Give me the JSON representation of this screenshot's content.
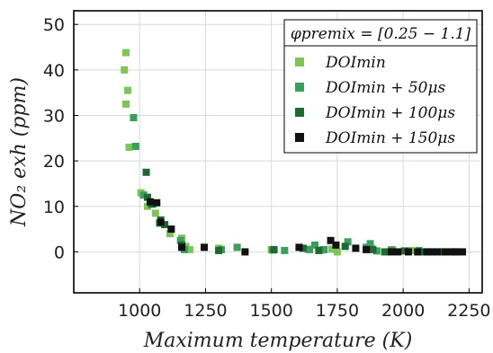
{
  "chart_data": {
    "type": "scatter",
    "title": "",
    "xlabel": "Maximum temperature (K)",
    "ylabel": "NO₂ exh (ppm)",
    "xlim": [
      750,
      2300
    ],
    "ylim": [
      -9,
      53
    ],
    "xticks": [
      1000,
      1250,
      1500,
      1750,
      2000,
      2250
    ],
    "yticks": [
      0,
      10,
      20,
      30,
      40,
      50
    ],
    "grid": true,
    "legend": {
      "title": "φpremix = [0.25 − 1.1]",
      "placement": "top-right"
    },
    "series": [
      {
        "name": "DOImin",
        "color": "#7cc657",
        "points": [
          [
            948,
            43.8
          ],
          [
            942,
            40
          ],
          [
            955,
            35.5
          ],
          [
            948,
            32.5
          ],
          [
            960,
            23
          ],
          [
            1005,
            13
          ],
          [
            1030,
            10
          ],
          [
            1060,
            8.5
          ],
          [
            1115,
            4
          ],
          [
            1160,
            3
          ],
          [
            1175,
            1.2
          ],
          [
            1190,
            0.5
          ],
          [
            1300,
            0.8
          ],
          [
            1500,
            0.5
          ],
          [
            1640,
            0.6
          ],
          [
            1690,
            0.4
          ],
          [
            1730,
            0.6
          ],
          [
            1750,
            0
          ],
          [
            1880,
            0.7
          ],
          [
            1960,
            0.5
          ],
          [
            2030,
            0.3
          ]
        ]
      },
      {
        "name": "DOImin + 50μs",
        "color": "#3a9f5c",
        "points": [
          [
            977,
            29.5
          ],
          [
            985,
            23.2
          ],
          [
            1015,
            12.5
          ],
          [
            1050,
            10.5
          ],
          [
            1075,
            6.3
          ],
          [
            1155,
            2.5
          ],
          [
            1170,
            0.5
          ],
          [
            1310,
            0.5
          ],
          [
            1370,
            1
          ],
          [
            1505,
            0.4
          ],
          [
            1550,
            0.3
          ],
          [
            1645,
            0.5
          ],
          [
            1665,
            1.5
          ],
          [
            1700,
            0.5
          ],
          [
            1790,
            2.2
          ],
          [
            1860,
            1
          ],
          [
            1875,
            1.8
          ],
          [
            1900,
            0.2
          ],
          [
            1955,
            0.4
          ],
          [
            2060,
            0.3
          ],
          [
            2095,
            0
          ]
        ]
      },
      {
        "name": "DOImin + 100μs",
        "color": "#1d6a30",
        "points": [
          [
            1025,
            17.5
          ],
          [
            1030,
            12
          ],
          [
            1045,
            10.5
          ],
          [
            1080,
            7
          ],
          [
            1095,
            6
          ],
          [
            1160,
            1.5
          ],
          [
            1300,
            0.3
          ],
          [
            1510,
            0.5
          ],
          [
            1620,
            0.8
          ],
          [
            1680,
            0.3
          ],
          [
            1780,
            1.2
          ],
          [
            1885,
            0.5
          ],
          [
            1930,
            0
          ],
          [
            2005,
            0.2
          ],
          [
            2070,
            0
          ],
          [
            2150,
            0
          ],
          [
            2195,
            0
          ]
        ]
      },
      {
        "name": "DOImin + 150μs",
        "color": "#111111",
        "points": [
          [
            1040,
            11
          ],
          [
            1065,
            10.8
          ],
          [
            1080,
            6.5
          ],
          [
            1120,
            5
          ],
          [
            1160,
            1
          ],
          [
            1245,
            1
          ],
          [
            1400,
            0
          ],
          [
            1605,
            1
          ],
          [
            1725,
            2.5
          ],
          [
            1745,
            1.5
          ],
          [
            1820,
            0.8
          ],
          [
            1860,
            0.5
          ],
          [
            1955,
            0
          ],
          [
            1980,
            0
          ],
          [
            2020,
            0
          ],
          [
            2055,
            0
          ],
          [
            2090,
            0
          ],
          [
            2110,
            0
          ],
          [
            2130,
            0
          ],
          [
            2160,
            0
          ],
          [
            2180,
            0
          ],
          [
            2200,
            0
          ],
          [
            2225,
            0
          ]
        ]
      }
    ]
  }
}
